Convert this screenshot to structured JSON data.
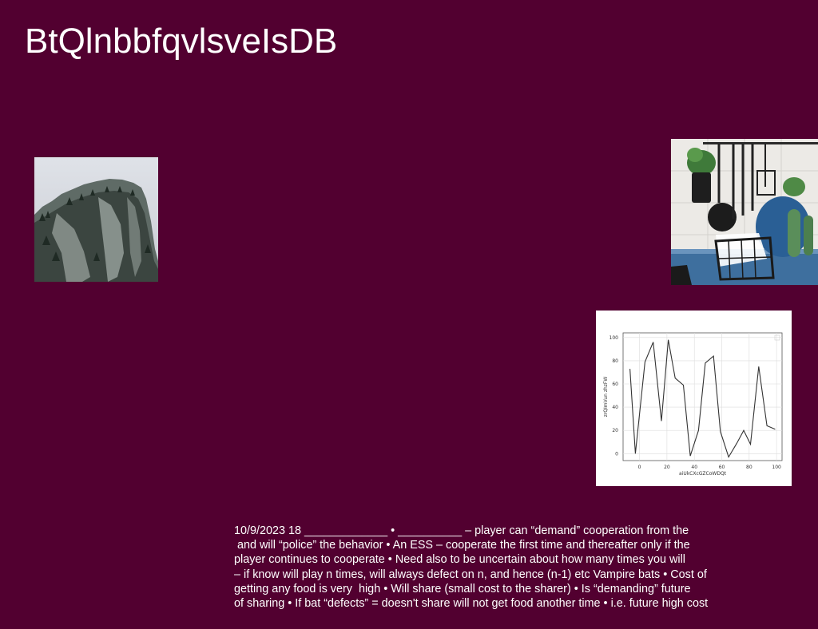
{
  "slide": {
    "title": "BtQlnbbfqvlsveIsDB",
    "body_lines": [
      "10/9/2023 18 _____________ • __________ – player can “demand” cooperation from the",
      " and will “police” the behavior • An ESS – cooperate the first time and thereafter only if the",
      "player continues to cooperate • Need also to be uncertain about how many times you will",
      "– if know will play n times, will always defect on n, and hence (n-1) etc Vampire bats • Cost of",
      "getting any food is very  high • Will share (small cost to the sharer) • Is “demanding” future",
      "of sharing • If bat “defects” = doesn't share will not get food another time • i.e. future high cost"
    ]
  },
  "images": {
    "mountain": "snowy-mountain-photo",
    "kitchen": "kitchen-utensils-photo"
  },
  "colors": {
    "background": "#520030",
    "text": "#ffffff",
    "line": "#333333"
  },
  "chart_data": {
    "type": "line",
    "x": [
      -7,
      -3,
      4,
      10,
      16,
      21,
      26,
      32,
      37,
      43,
      48,
      54,
      59,
      65,
      71,
      76,
      81,
      87,
      93,
      99
    ],
    "series": [
      {
        "values": [
          73,
          0,
          79,
          96,
          28,
          98,
          65,
          59,
          -2,
          20,
          78,
          84,
          19,
          -3,
          9,
          20,
          8,
          75,
          24,
          21
        ]
      }
    ],
    "xticks": [
      0,
      20,
      40,
      60,
      80,
      100
    ],
    "yticks": [
      0,
      20,
      40,
      60,
      80,
      100
    ],
    "xlabel": "aiUkCXcGZCoWDQt",
    "ylabel": "zrQImVun zhzFW",
    "xlim": [
      -12,
      104
    ],
    "ylim": [
      -6,
      104
    ],
    "grid": true
  }
}
